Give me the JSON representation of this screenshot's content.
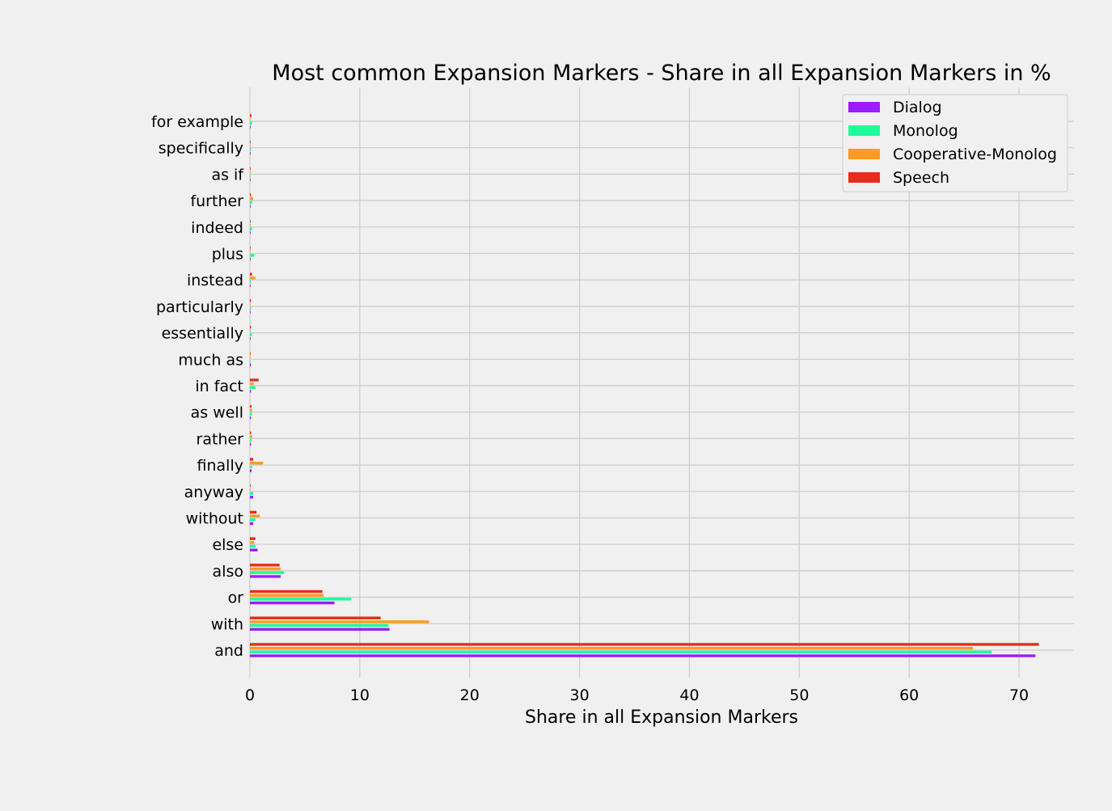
{
  "chart_data": {
    "type": "bar",
    "orientation": "horizontal",
    "title": "Most common Expansion Markers - Share in all Expansion Markers in %",
    "xlabel": "Share in all Expansion Markers",
    "ylabel": "",
    "xlim": [
      0,
      75
    ],
    "xticks": [
      0,
      10,
      20,
      30,
      40,
      50,
      60,
      70
    ],
    "grid": true,
    "legend_position": "top-right",
    "categories": [
      "and",
      "with",
      "or",
      "also",
      "else",
      "without",
      "anyway",
      "finally",
      "rather",
      "as well",
      "in fact",
      "much as",
      "essentially",
      "particularly",
      "instead",
      "plus",
      "indeed",
      "further",
      "as if",
      "specifically",
      "for example"
    ],
    "series": [
      {
        "name": "Dialog",
        "color": "#9b1dfc",
        "values": [
          71.5,
          12.7,
          7.7,
          2.8,
          0.7,
          0.3,
          0.3,
          0.15,
          0.1,
          0.1,
          0.1,
          0.1,
          0.05,
          0.05,
          0.05,
          0.05,
          0.05,
          0.05,
          0.05,
          0.05,
          0.05
        ]
      },
      {
        "name": "Monolog",
        "color": "#1efc9a",
        "values": [
          67.5,
          12.6,
          9.2,
          3.1,
          0.5,
          0.5,
          0.3,
          0.2,
          0.15,
          0.2,
          0.5,
          0.05,
          0.2,
          0.1,
          0.1,
          0.4,
          0.2,
          0.2,
          0.05,
          0.1,
          0.2
        ]
      },
      {
        "name": "Cooperative-Monolog",
        "color": "#ff9a22",
        "values": [
          65.8,
          16.3,
          6.7,
          2.8,
          0.4,
          0.9,
          0.05,
          1.2,
          0.2,
          0.2,
          0.35,
          0.05,
          0.05,
          0.05,
          0.5,
          0.05,
          0.05,
          0.3,
          0.05,
          0.05,
          0.05
        ]
      },
      {
        "name": "Speech",
        "color": "#e42e1b",
        "values": [
          71.8,
          11.9,
          6.6,
          2.7,
          0.5,
          0.6,
          0.05,
          0.3,
          0.1,
          0.15,
          0.8,
          0.05,
          0.1,
          0.1,
          0.2,
          0.05,
          0.05,
          0.1,
          0.05,
          0.05,
          0.15
        ]
      }
    ]
  }
}
